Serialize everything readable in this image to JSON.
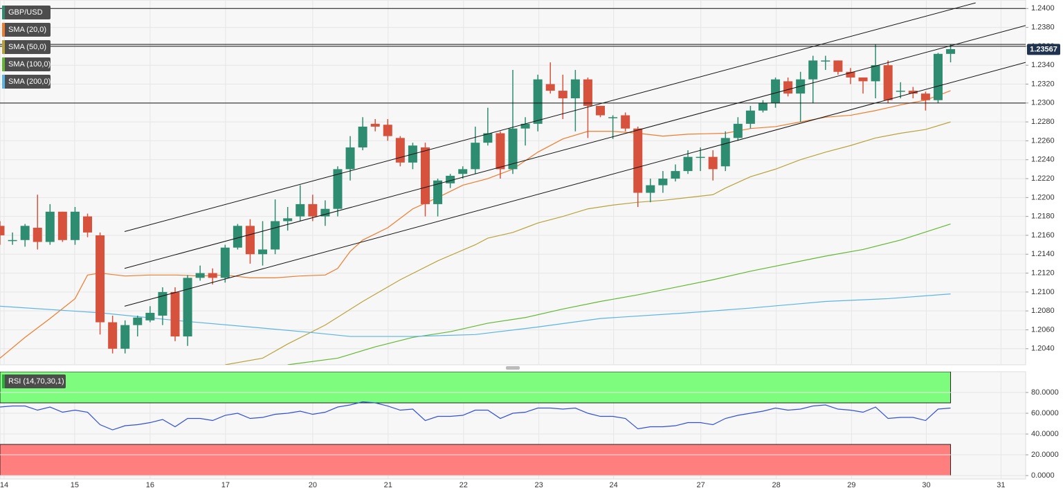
{
  "chart_data": [
    {
      "type": "candlestick",
      "name": "GBP/USD",
      "color": "#2e8c70",
      "up_color": "#2e8c70",
      "down_color": "#d6523c",
      "x": [
        0,
        1,
        2,
        3,
        4,
        5,
        6,
        7,
        8,
        9,
        10,
        11,
        12,
        13,
        14,
        15,
        16,
        17,
        18,
        19,
        20,
        21,
        22,
        23,
        24,
        25,
        26,
        27,
        28,
        29,
        30,
        31,
        32,
        33,
        34,
        35,
        36,
        37,
        38,
        39,
        40,
        41,
        42,
        43,
        44,
        45,
        46,
        47,
        48,
        49,
        50,
        51,
        52,
        53,
        54,
        55,
        56,
        57,
        58,
        59,
        60,
        61,
        62,
        63,
        64,
        65,
        66,
        67,
        68,
        69,
        70,
        71,
        72,
        73,
        74,
        75,
        76
      ],
      "open": [
        1.217,
        1.2155,
        1.2155,
        1.2168,
        1.2153,
        1.2185,
        1.2155,
        1.218,
        1.216,
        1.2068,
        1.204,
        1.2065,
        1.207,
        1.2075,
        1.21,
        1.2053,
        1.2115,
        1.212,
        1.2115,
        1.2147,
        1.217,
        1.214,
        1.2145,
        1.2175,
        1.218,
        1.2193,
        1.218,
        1.2188,
        1.223,
        1.2253,
        1.2278,
        1.2277,
        1.2263,
        1.2237,
        1.2253,
        1.2193,
        1.2215,
        1.2225,
        1.223,
        1.2258,
        1.2268,
        1.223,
        1.2273,
        1.2278,
        1.232,
        1.2313,
        1.2305,
        1.2325,
        1.2297,
        1.2285,
        1.2287,
        1.2273,
        1.2205,
        1.2213,
        1.222,
        1.2228,
        1.2243,
        1.2243,
        1.2233,
        1.2263,
        1.2278,
        1.2292,
        1.23,
        1.2323,
        1.231,
        1.2325,
        1.2345,
        1.2345,
        1.2333,
        1.2327,
        1.2323,
        1.234,
        1.2313,
        1.2313,
        1.231,
        1.2303,
        1.2352
      ],
      "high": [
        1.2175,
        1.2163,
        1.2172,
        1.2203,
        1.2193,
        1.2185,
        1.219,
        1.2183,
        1.2163,
        1.2075,
        1.207,
        1.2075,
        1.2085,
        1.2105,
        1.2105,
        1.2118,
        1.2128,
        1.2125,
        1.215,
        1.2172,
        1.2177,
        1.2175,
        1.2198,
        1.219,
        1.2213,
        1.2203,
        1.2197,
        1.2233,
        1.2265,
        1.2285,
        1.2283,
        1.2283,
        1.2265,
        1.2258,
        1.2258,
        1.222,
        1.2225,
        1.2233,
        1.2275,
        1.2295,
        1.227,
        1.2335,
        1.2285,
        1.233,
        1.2343,
        1.233,
        1.2335,
        1.2327,
        1.2297,
        1.2287,
        1.229,
        1.2275,
        1.222,
        1.2228,
        1.2235,
        1.225,
        1.2253,
        1.225,
        1.227,
        1.2285,
        1.2297,
        1.2303,
        1.2327,
        1.2327,
        1.2333,
        1.235,
        1.235,
        1.2345,
        1.2337,
        1.2327,
        1.2362,
        1.2345,
        1.2322,
        1.2317,
        1.2312,
        1.2353,
        1.2362
      ],
      "low": [
        1.215,
        1.215,
        1.2148,
        1.2145,
        1.215,
        1.2153,
        1.215,
        1.2158,
        1.2055,
        1.2035,
        1.2035,
        1.2053,
        1.2068,
        1.2065,
        1.2048,
        1.2043,
        1.2112,
        1.2108,
        1.211,
        1.2145,
        1.213,
        1.2128,
        1.214,
        1.2165,
        1.2175,
        1.2175,
        1.217,
        1.218,
        1.2218,
        1.225,
        1.227,
        1.226,
        1.2233,
        1.223,
        1.218,
        1.218,
        1.221,
        1.222,
        1.2225,
        1.2255,
        1.222,
        1.2225,
        1.2255,
        1.227,
        1.231,
        1.2283,
        1.227,
        1.2263,
        1.2285,
        1.2262,
        1.227,
        1.219,
        1.2195,
        1.2205,
        1.2217,
        1.2225,
        1.2228,
        1.2218,
        1.2228,
        1.226,
        1.2273,
        1.229,
        1.2295,
        1.2307,
        1.228,
        1.23,
        1.2335,
        1.233,
        1.232,
        1.231,
        1.2305,
        1.23,
        1.2305,
        1.2305,
        1.2292,
        1.23,
        1.2343
      ],
      "close": [
        1.216,
        1.2155,
        1.217,
        1.2153,
        1.2185,
        1.2155,
        1.2185,
        1.2163,
        1.2068,
        1.204,
        1.2065,
        1.2073,
        1.2078,
        1.21,
        1.2053,
        1.2115,
        1.212,
        1.2115,
        1.2147,
        1.217,
        1.214,
        1.2145,
        1.2175,
        1.2178,
        1.2193,
        1.218,
        1.2188,
        1.223,
        1.2253,
        1.2275,
        1.2275,
        1.2265,
        1.2237,
        1.2255,
        1.2193,
        1.2218,
        1.2223,
        1.223,
        1.2258,
        1.2268,
        1.223,
        1.2273,
        1.2278,
        1.2325,
        1.2313,
        1.2305,
        1.2325,
        1.2297,
        1.2287,
        1.2285,
        1.2273,
        1.2205,
        1.2213,
        1.222,
        1.2228,
        1.2243,
        1.2243,
        1.223,
        1.2263,
        1.2278,
        1.2292,
        1.23,
        1.2325,
        1.231,
        1.2325,
        1.2345,
        1.2345,
        1.2333,
        1.2327,
        1.2323,
        1.234,
        1.2303,
        1.2313,
        1.231,
        1.2303,
        1.2352,
        1.2357
      ],
      "series": [
        {
          "name": "SMA (20,0)",
          "color": "#ef7b2c",
          "x": [
            0,
            2,
            4,
            6,
            7,
            8,
            10,
            12,
            14,
            16,
            18,
            20,
            22,
            24,
            26,
            27,
            28,
            29,
            31,
            33,
            35,
            37,
            39,
            41,
            43,
            45,
            47,
            49,
            51,
            53,
            55,
            58,
            60,
            62,
            64,
            66,
            68,
            70,
            72,
            74,
            76
          ],
          "values": [
            1.203,
            1.2052,
            1.2072,
            1.2093,
            1.2118,
            1.212,
            1.2117,
            1.2118,
            1.2118,
            1.2117,
            1.2118,
            1.2115,
            1.2115,
            1.2117,
            1.2118,
            1.2125,
            1.2143,
            1.2155,
            1.2168,
            1.2188,
            1.22,
            1.2213,
            1.222,
            1.223,
            1.2248,
            1.2262,
            1.227,
            1.227,
            1.2268,
            1.2265,
            1.2267,
            1.2268,
            1.2273,
            1.2275,
            1.228,
            1.2285,
            1.2287,
            1.2292,
            1.2298,
            1.2303,
            1.2313
          ]
        },
        {
          "name": "SMA (50,0)",
          "color": "#b8a23a",
          "x": [
            18,
            21,
            23,
            26,
            29,
            32,
            35,
            38,
            39,
            41,
            43,
            45,
            47,
            49,
            51,
            53,
            55,
            57,
            58,
            60,
            62,
            64,
            66,
            68,
            70,
            72,
            74,
            76
          ],
          "values": [
            1.2023,
            1.203,
            1.2045,
            1.2065,
            1.209,
            1.2113,
            1.2133,
            1.215,
            1.2157,
            1.2163,
            1.2173,
            1.218,
            1.2188,
            1.2192,
            1.2195,
            1.2197,
            1.22,
            1.2203,
            1.221,
            1.2222,
            1.223,
            1.224,
            1.2248,
            1.2255,
            1.2263,
            1.2268,
            1.2272,
            1.228
          ]
        },
        {
          "name": "SMA (100,0)",
          "color": "#62b832",
          "x": [
            23,
            27,
            30,
            33,
            36,
            39,
            42,
            45,
            48,
            51,
            54,
            57,
            60,
            63,
            66,
            69,
            72,
            76
          ],
          "values": [
            1.2023,
            1.203,
            1.2042,
            1.2052,
            1.2058,
            1.2067,
            1.2073,
            1.2082,
            1.209,
            1.2097,
            1.2105,
            1.2113,
            1.2122,
            1.213,
            1.2138,
            1.2145,
            1.2155,
            1.2172
          ]
        },
        {
          "name": "SMA (200,0)",
          "color": "#5ab4e5",
          "x": [
            0,
            8,
            14,
            20,
            25,
            28,
            33,
            38,
            43,
            48,
            55,
            60,
            66,
            71,
            76
          ],
          "values": [
            1.2085,
            1.2078,
            1.207,
            1.2063,
            1.2057,
            1.2053,
            1.2053,
            1.2055,
            1.2063,
            1.2072,
            1.2078,
            1.2083,
            1.209,
            1.2093,
            1.2098
          ]
        }
      ],
      "trendlines": [
        {
          "x": [
            9.96,
            78.0
          ],
          "y": [
            1.2164,
            1.2406
          ]
        },
        {
          "x": [
            9.96,
            82
          ],
          "y": [
            1.2125,
            1.2382
          ]
        },
        {
          "x": [
            9.96,
            82
          ],
          "y": [
            1.2085,
            1.2343
          ]
        }
      ],
      "hlines": [
        1.24,
        1.2362,
        1.236,
        1.23
      ],
      "last_price": {
        "value": 1.23567,
        "label": "1.23567"
      },
      "xlim": [
        0,
        82
      ],
      "ylim": [
        1.2023,
        1.2409
      ],
      "xticks": [
        {
          "value": 0.33,
          "label": "14"
        },
        {
          "value": 5.97,
          "label": "15"
        },
        {
          "value": 12.0,
          "label": "16"
        },
        {
          "value": 18.03,
          "label": "17"
        },
        {
          "value": 25.0,
          "label": "20"
        },
        {
          "value": 31.03,
          "label": "21"
        },
        {
          "value": 37.06,
          "label": "22"
        },
        {
          "value": 43.08,
          "label": "23"
        },
        {
          "value": 49.06,
          "label": "24"
        },
        {
          "value": 56.03,
          "label": "27"
        },
        {
          "value": 62.06,
          "label": "28"
        },
        {
          "value": 68.08,
          "label": "29"
        },
        {
          "value": 74.06,
          "label": "30"
        },
        {
          "value": 80.03,
          "label": "31"
        }
      ],
      "yticks": [
        {
          "value": 1.204,
          "label": "1.2040"
        },
        {
          "value": 1.206,
          "label": "1.2060"
        },
        {
          "value": 1.208,
          "label": "1.2080"
        },
        {
          "value": 1.21,
          "label": "1.2100"
        },
        {
          "value": 1.212,
          "label": "1.2120"
        },
        {
          "value": 1.214,
          "label": "1.2140"
        },
        {
          "value": 1.216,
          "label": "1.2160"
        },
        {
          "value": 1.218,
          "label": "1.2180"
        },
        {
          "value": 1.22,
          "label": "1.2200"
        },
        {
          "value": 1.222,
          "label": "1.2220"
        },
        {
          "value": 1.224,
          "label": "1.2240"
        },
        {
          "value": 1.226,
          "label": "1.2260"
        },
        {
          "value": 1.228,
          "label": "1.2280"
        },
        {
          "value": 1.23,
          "label": "1.2300"
        },
        {
          "value": 1.232,
          "label": "1.2320"
        },
        {
          "value": 1.234,
          "label": "1.2340"
        },
        {
          "value": 1.236,
          "label": "1.2360"
        },
        {
          "value": 1.238,
          "label": "1.2380"
        },
        {
          "value": 1.24,
          "label": "1.2400"
        }
      ],
      "grid": true
    },
    {
      "type": "line",
      "title": "RSI (14,70,30,1)",
      "color": "#2f4fd8",
      "values": [
        66,
        67,
        67,
        63,
        66,
        61,
        63,
        61,
        49,
        44,
        48,
        49,
        51,
        54,
        47,
        55,
        55,
        53,
        58,
        60,
        55,
        56,
        59,
        60,
        62,
        59,
        61,
        66,
        68,
        71,
        70,
        67,
        63,
        64,
        53,
        57,
        57,
        58,
        63,
        63,
        55,
        60,
        61,
        65,
        65,
        64,
        65,
        60,
        57,
        57,
        55,
        45,
        47,
        47,
        48,
        51,
        51,
        49,
        55,
        58,
        60,
        62,
        65,
        63,
        64,
        67,
        68,
        64,
        63,
        61,
        66,
        55,
        56,
        56,
        53,
        64,
        65
      ],
      "bands": [
        {
          "from": 70,
          "to": 100,
          "color": "#7dfc7d"
        },
        {
          "from": 0,
          "to": 30,
          "color": "#ff7f7f"
        }
      ],
      "ylim": [
        -3.3,
        100
      ],
      "yticks": [
        {
          "value": 0,
          "label": "0.0000"
        },
        {
          "value": 20,
          "label": "20.0000"
        },
        {
          "value": 40,
          "label": "40.0000"
        },
        {
          "value": 60,
          "label": "60.0000"
        },
        {
          "value": 80,
          "label": "80.0000"
        }
      ],
      "grid": true
    }
  ]
}
